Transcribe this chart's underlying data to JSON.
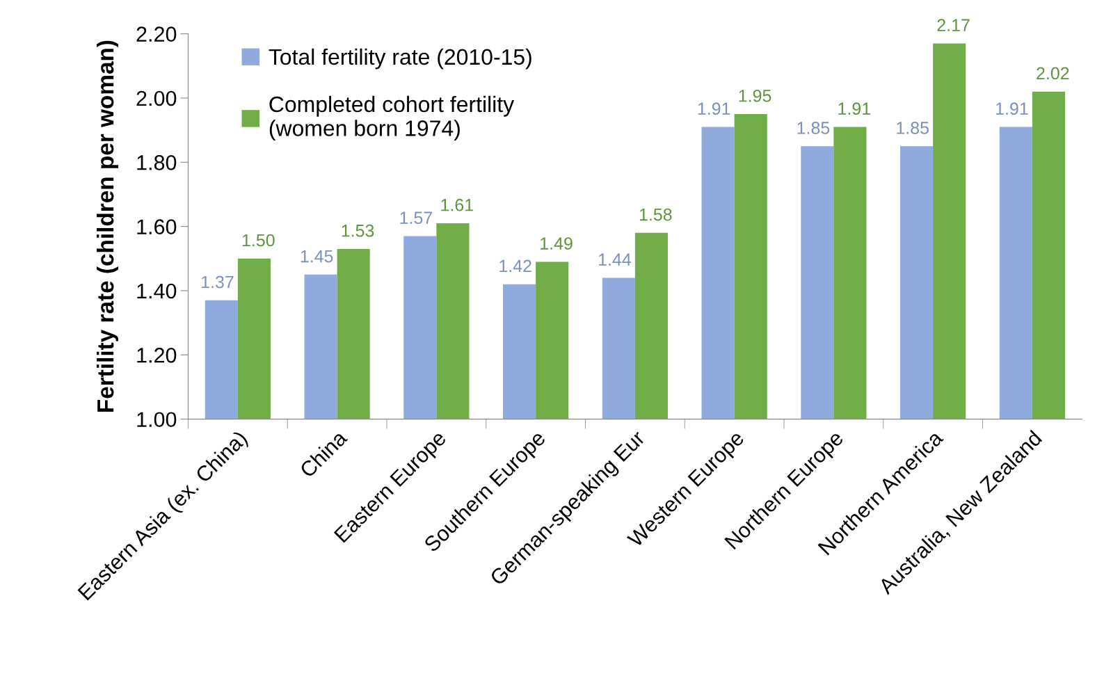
{
  "chart_data": {
    "type": "bar",
    "ylabel": "Fertility rate (children per woman)",
    "categories": [
      "Eastern Asia (ex. China)",
      "China",
      "Eastern Europe",
      "Southern Europe",
      "German-speaking Eur",
      "Western Europe",
      "Northern Europe",
      "Northern America",
      "Australia, New Zealand"
    ],
    "series": [
      {
        "name": "Total fertility rate (2010-15)",
        "color": "#8faadc",
        "values": [
          1.37,
          1.45,
          1.57,
          1.42,
          1.44,
          1.91,
          1.85,
          1.85,
          1.91
        ],
        "value_labels": [
          "1.37",
          "1.45",
          "1.57",
          "1.42",
          "1.44",
          "1.91",
          "1.85",
          "1.85",
          "1.91"
        ]
      },
      {
        "name": "Completed cohort fertility\n(women born 1974)",
        "color": "#70ad47",
        "values": [
          1.5,
          1.53,
          1.61,
          1.49,
          1.58,
          1.95,
          1.91,
          2.17,
          2.02
        ],
        "value_labels": [
          "1.50",
          "1.53",
          "1.61",
          "1.49",
          "1.58",
          "1.95",
          "1.91",
          "2.17",
          "2.02"
        ]
      }
    ],
    "ylim": [
      1.0,
      2.2
    ],
    "yticks": [
      {
        "value": 1.0,
        "label": "1.00"
      },
      {
        "value": 1.2,
        "label": "1.20"
      },
      {
        "value": 1.4,
        "label": "1.40"
      },
      {
        "value": 1.6,
        "label": "1.60"
      },
      {
        "value": 1.8,
        "label": "1.80"
      },
      {
        "value": 2.0,
        "label": "2.00"
      },
      {
        "value": 2.2,
        "label": "2.20"
      }
    ],
    "grid": false,
    "legend": "top left"
  }
}
